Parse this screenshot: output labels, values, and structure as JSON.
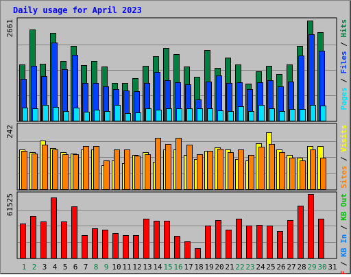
{
  "title": "Daily usage for April 2023",
  "colors": {
    "background": "#c0c0c0",
    "title": "#0000ff",
    "hits": "#008040",
    "files": "#0040ff",
    "pages": "#00e0ff",
    "visits": "#ffff00",
    "sites": "#ff8000",
    "kbin": "#0080ff",
    "kbout": "#00c000",
    "kbf": "#ff0000",
    "weekday_label": "#000000",
    "weekend_label": "#008040"
  },
  "chart_data": [
    {
      "type": "bar",
      "panel": "hits_files_pages",
      "y_max_label": "2661",
      "ylim": [
        0,
        2661
      ],
      "axis_label_parts": [
        {
          "text": "Pages",
          "color": "#00e0ff"
        },
        {
          "text": " / ",
          "color": "#000000"
        },
        {
          "text": "Files",
          "color": "#0040ff"
        },
        {
          "text": " / ",
          "color": "#000000"
        },
        {
          "text": "Hits",
          "color": "#008040"
        }
      ],
      "series": [
        {
          "name": "Hits",
          "color": "#008040",
          "values": [
            1480,
            2400,
            1500,
            2310,
            1570,
            1970,
            1460,
            1570,
            1430,
            1000,
            1000,
            1130,
            1450,
            1700,
            1920,
            1760,
            1430,
            1150,
            1870,
            1400,
            1670,
            1480,
            970,
            1310,
            1440,
            1230,
            1480,
            1980,
            2650,
            2330
          ]
        },
        {
          "name": "Files",
          "color": "#0040ff",
          "values": [
            1100,
            1450,
            1180,
            2060,
            1360,
            1740,
            1000,
            1000,
            900,
            830,
            790,
            780,
            1000,
            1280,
            1070,
            1020,
            960,
            570,
            1040,
            1200,
            1000,
            1010,
            840,
            1020,
            1060,
            910,
            1030,
            1720,
            2280,
            1840
          ]
        },
        {
          "name": "Pages",
          "color": "#00e0ff",
          "values": [
            340,
            330,
            420,
            360,
            260,
            350,
            240,
            290,
            250,
            420,
            200,
            210,
            330,
            290,
            330,
            330,
            320,
            330,
            320,
            280,
            260,
            380,
            250,
            410,
            320,
            250,
            300,
            300,
            420,
            400
          ]
        }
      ]
    },
    {
      "type": "bar",
      "panel": "visits_sites",
      "y_max_label": "242",
      "ylim": [
        0,
        242
      ],
      "axis_label_parts": [
        {
          "text": "Sites",
          "color": "#ff8000"
        },
        {
          "text": " / ",
          "color": "#000000"
        },
        {
          "text": "Visits",
          "color": "#ffff00"
        }
      ],
      "series": [
        {
          "name": "Visits",
          "color": "#ffff00",
          "values": [
            150,
            140,
            185,
            155,
            140,
            135,
            150,
            150,
            90,
            110,
            100,
            130,
            140,
            105,
            150,
            150,
            130,
            115,
            145,
            160,
            150,
            115,
            110,
            175,
            215,
            150,
            130,
            120,
            165,
            165
          ]
        },
        {
          "name": "Sites",
          "color": "#ff8000",
          "values": [
            145,
            135,
            170,
            150,
            132,
            132,
            165,
            165,
            110,
            150,
            150,
            128,
            132,
            195,
            172,
            195,
            170,
            132,
            145,
            153,
            140,
            150,
            130,
            162,
            172,
            140,
            120,
            110,
            150,
            120
          ]
        }
      ]
    },
    {
      "type": "bar",
      "panel": "kbytes",
      "y_max_label": "61525",
      "ylim": [
        0,
        61525
      ],
      "axis_label_parts": [
        {
          "text": "KB F",
          "color": "#ff0000"
        },
        {
          "text": " / ",
          "color": "#000000"
        },
        {
          "text": "KB In",
          "color": "#0080ff"
        },
        {
          "text": " / ",
          "color": "#000000"
        },
        {
          "text": "KB Out",
          "color": "#00c000"
        }
      ],
      "series": [
        {
          "name": "KB F",
          "color": "#ff0000",
          "values": [
            33300,
            40300,
            35000,
            58300,
            35000,
            49500,
            21700,
            28600,
            27100,
            23500,
            21700,
            21700,
            37500,
            35800,
            35800,
            21000,
            15800,
            9500,
            30800,
            36300,
            27100,
            37500,
            30800,
            31700,
            30800,
            26000,
            36300,
            50500,
            61500,
            37500
          ]
        }
      ]
    }
  ],
  "x_axis": {
    "labels": [
      "1",
      "2",
      "3",
      "4",
      "5",
      "6",
      "7",
      "8",
      "9",
      "10",
      "11",
      "12",
      "13",
      "14",
      "15",
      "16",
      "17",
      "18",
      "19",
      "20",
      "21",
      "22",
      "23",
      "24",
      "25",
      "26",
      "27",
      "28",
      "29",
      "30",
      "31"
    ],
    "weekend": [
      1,
      2,
      8,
      9,
      15,
      16,
      22,
      23,
      29,
      30
    ]
  }
}
